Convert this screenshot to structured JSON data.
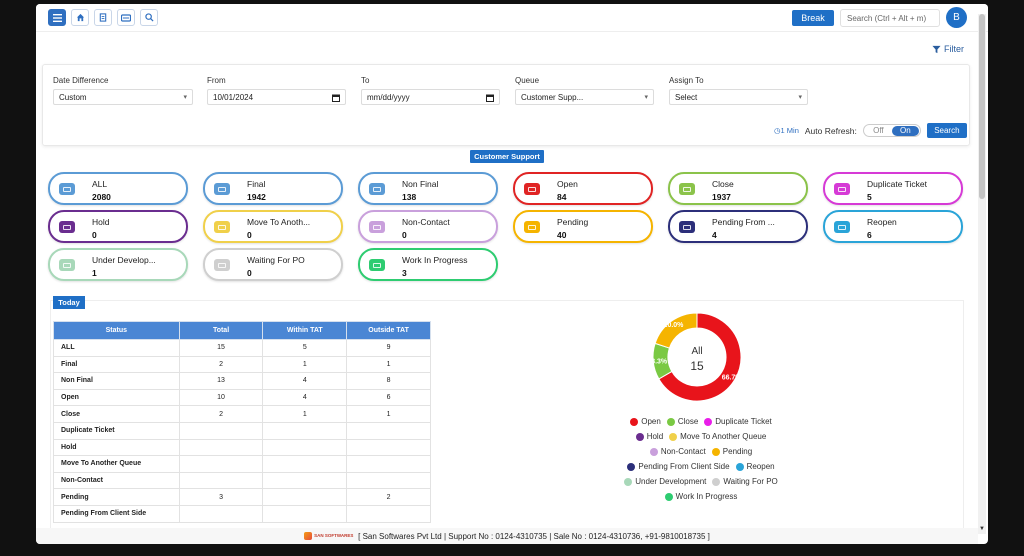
{
  "topbar": {
    "break_label": "Break",
    "search_placeholder": "Search (Ctrl + Alt + m)",
    "avatar_letter": "B"
  },
  "filter_link": "Filter",
  "filters": {
    "date_difference": {
      "label": "Date Difference",
      "value": "Custom"
    },
    "from": {
      "label": "From",
      "value": "10/01/2024"
    },
    "to": {
      "label": "To",
      "value": "mm/dd/yyyy"
    },
    "queue": {
      "label": "Queue",
      "value": "Customer Supp..."
    },
    "assign_to": {
      "label": "Assign To",
      "value": "Select"
    },
    "interval": "1 Min",
    "auto_refresh_label": "Auto Refresh:",
    "off_label": "Off",
    "on_label": "On",
    "search_label": "Search"
  },
  "queue_badge": "Customer Support",
  "cards": [
    {
      "label": "ALL",
      "count": "2080",
      "color": "#5b9bd5"
    },
    {
      "label": "Final",
      "count": "1942",
      "color": "#5b9bd5"
    },
    {
      "label": "Non Final",
      "count": "138",
      "color": "#5b9bd5"
    },
    {
      "label": "Open",
      "count": "84",
      "color": "#e02424"
    },
    {
      "label": "Close",
      "count": "1937",
      "color": "#8bc34a"
    },
    {
      "label": "Duplicate Ticket",
      "count": "5",
      "color": "#d63ad6"
    },
    {
      "label": "Hold",
      "count": "0",
      "color": "#6a2d8f"
    },
    {
      "label": "Move To Anoth...",
      "count": "0",
      "color": "#f0d04a"
    },
    {
      "label": "Non-Contact",
      "count": "0",
      "color": "#c9a0dc"
    },
    {
      "label": "Pending",
      "count": "40",
      "color": "#f5b400"
    },
    {
      "label": "Pending From ...",
      "count": "4",
      "color": "#2c2f7a"
    },
    {
      "label": "Reopen",
      "count": "6",
      "color": "#2aa4d8"
    },
    {
      "label": "Under Develop...",
      "count": "1",
      "color": "#a8d8b9"
    },
    {
      "label": "Waiting For PO",
      "count": "0",
      "color": "#cfcfcf"
    },
    {
      "label": "Work In Progress",
      "count": "3",
      "color": "#2ecc71"
    }
  ],
  "today_badge": "Today",
  "table": {
    "headers": [
      "Status",
      "Total",
      "Within TAT",
      "Outside TAT"
    ],
    "rows": [
      [
        "ALL",
        "15",
        "5",
        "9"
      ],
      [
        "Final",
        "2",
        "1",
        "1"
      ],
      [
        "Non Final",
        "13",
        "4",
        "8"
      ],
      [
        "Open",
        "10",
        "4",
        "6"
      ],
      [
        "Close",
        "2",
        "1",
        "1"
      ],
      [
        "Duplicate Ticket",
        "",
        "",
        ""
      ],
      [
        "Hold",
        "",
        "",
        ""
      ],
      [
        "Move To Another Queue",
        "",
        "",
        ""
      ],
      [
        "Non-Contact",
        "",
        "",
        ""
      ],
      [
        "Pending",
        "3",
        "",
        "2"
      ],
      [
        "Pending From Client Side",
        "",
        "",
        ""
      ]
    ]
  },
  "chart_data": {
    "type": "pie",
    "center_label": "All",
    "center_value": "15",
    "slices": [
      {
        "name": "Open",
        "value": 66.7,
        "label": "66.7%",
        "color": "#e8141b"
      },
      {
        "name": "Close",
        "value": 13.3,
        "label": "13.3%",
        "color": "#7ac943"
      },
      {
        "name": "Pending",
        "value": 20.0,
        "label": "20.0%",
        "color": "#f5b400"
      }
    ],
    "legend": [
      [
        {
          "name": "Open",
          "color": "#e8141b"
        },
        {
          "name": "Close",
          "color": "#7ac943"
        },
        {
          "name": "Duplicate Ticket",
          "color": "#e91ee9"
        }
      ],
      [
        {
          "name": "Hold",
          "color": "#6a2d8f"
        },
        {
          "name": "Move To Another Queue",
          "color": "#f0d04a"
        }
      ],
      [
        {
          "name": "Non-Contact",
          "color": "#c9a0dc"
        },
        {
          "name": "Pending",
          "color": "#f5b400"
        }
      ],
      [
        {
          "name": "Pending From Client Side",
          "color": "#2c2f7a"
        },
        {
          "name": "Reopen",
          "color": "#2aa4d8"
        }
      ],
      [
        {
          "name": "Under Development",
          "color": "#a8d8b9"
        },
        {
          "name": "Waiting For PO",
          "color": "#cfcfcf"
        }
      ],
      [
        {
          "name": "Work In Progress",
          "color": "#2ecc71"
        }
      ]
    ]
  },
  "footer": {
    "logo_text": "SAN SOFTWARES",
    "text": "[ San Softwares Pvt Ltd | Support No : 0124-4310735 | Sale No : 0124-4310736, +91-9810018735 ]"
  }
}
